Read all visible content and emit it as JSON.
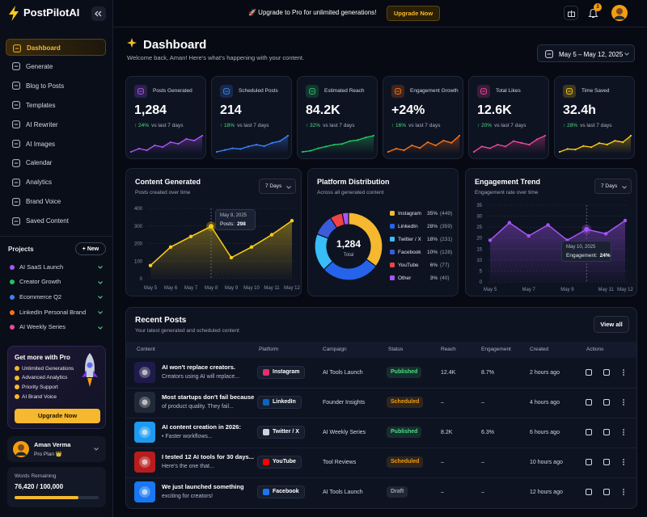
{
  "brand": "PostPilotAI",
  "nav": [
    "Dashboard",
    "Generate",
    "Blog to Posts",
    "Templates",
    "AI Rewriter",
    "AI Images",
    "Calendar",
    "Analytics",
    "Brand Voice",
    "Saved Content"
  ],
  "projects_title": "Projects",
  "new_button": "+ New",
  "projects": [
    {
      "name": "AI SaaS Launch",
      "color": "#a855f7"
    },
    {
      "name": "Creator Growth",
      "color": "#22c55e"
    },
    {
      "name": "Ecommerce Q2",
      "color": "#3b82f6"
    },
    {
      "name": "LinkedIn Personal Brand",
      "color": "#f97316"
    },
    {
      "name": "AI Weekly Series",
      "color": "#ec4899"
    }
  ],
  "promo": {
    "title": "Get more with Pro",
    "features": [
      "Unlimited Generations",
      "Advanced Analytics",
      "Priority Support",
      "AI Brand Voice"
    ],
    "button": "Upgrade Now"
  },
  "user": {
    "name": "Aman Verma",
    "plan": "Pro Plan 👑"
  },
  "words": {
    "label": "Words Remaining",
    "text": "76,420 / 100,000",
    "remaining": 76420,
    "limit": 100000
  },
  "banner": {
    "text": "🚀 Upgrade to Pro for unlimited generations!",
    "button": "Upgrade Now"
  },
  "notifications": "3",
  "header": {
    "title": "Dashboard",
    "subtitle": "Welcome back, Aman! Here's what's happening with your content.",
    "date_range": "May 5 – May 12, 2025"
  },
  "stats": [
    {
      "title": "Posts Generated",
      "value": "1,284",
      "change": "↑ 24%",
      "compare": "vs last 7 days",
      "color": "#a855f7",
      "sparkline": [
        4,
        5,
        4.5,
        6,
        5.5,
        7,
        6.5,
        8,
        7.5,
        9
      ]
    },
    {
      "title": "Scheduled Posts",
      "value": "214",
      "change": "↑ 18%",
      "compare": "vs last 7 days",
      "color": "#3b82f6",
      "sparkline": [
        3,
        3.5,
        4,
        3.8,
        4.5,
        5,
        4.6,
        5.5,
        6,
        7.5
      ]
    },
    {
      "title": "Estimated Reach",
      "value": "84.2K",
      "change": "↑ 32%",
      "compare": "vs last 7 days",
      "color": "#22c55e",
      "sparkline": [
        3,
        3.3,
        4,
        4.5,
        5,
        5.2,
        6,
        6.3,
        7,
        7.5
      ]
    },
    {
      "title": "Engagement Growth",
      "value": "+24%",
      "change": "↑ 16%",
      "compare": "vs last 7 days",
      "color": "#f97316",
      "sparkline": [
        3,
        4,
        3.5,
        5,
        4.2,
        6,
        5,
        6.5,
        5.8,
        8
      ]
    },
    {
      "title": "Total Likes",
      "value": "12.6K",
      "change": "↑ 20%",
      "compare": "vs last 7 days",
      "color": "#ec4899",
      "sparkline": [
        3,
        4.5,
        4,
        5,
        4.5,
        6,
        5.5,
        5,
        6.5,
        7.5
      ]
    },
    {
      "title": "Time Saved",
      "value": "32.4h",
      "change": "↑ 28%",
      "compare": "vs last 7 days",
      "color": "#facc15",
      "sparkline": [
        3,
        4,
        3.8,
        5,
        4.6,
        6,
        5.5,
        6.8,
        6.3,
        8.5
      ]
    }
  ],
  "content_generated": {
    "type": "line",
    "title": "Content Generated",
    "subtitle": "Posts created over time",
    "period": "7 Days",
    "categories": [
      "May 5",
      "May 6",
      "May 7",
      "May 8",
      "May 9",
      "May 10",
      "May 11",
      "May 12"
    ],
    "values": [
      75,
      180,
      240,
      298,
      120,
      180,
      250,
      330
    ],
    "ylim": [
      0,
      400
    ],
    "yticks": [
      0,
      100,
      200,
      300,
      400
    ],
    "grid": true,
    "color": "#facc15",
    "tooltip": {
      "title": "May 8, 2025",
      "label": "Posts:"
    }
  },
  "platform_distribution": {
    "type": "pie",
    "title": "Platform Distribution",
    "subtitle": "Across all generated content",
    "total": "1,284",
    "total_label": "Total",
    "categories": [
      "Instagram",
      "LinkedIn",
      "Twitter / X",
      "Facebook",
      "YouTube",
      "Other"
    ],
    "values": [
      35,
      28,
      18,
      10,
      6,
      3
    ],
    "value_labels": [
      "35%",
      "28%",
      "18%",
      "10%",
      "6%",
      "3%"
    ],
    "count_labels": [
      "(449)",
      "(359)",
      "(231)",
      "(128)",
      "(77)",
      "(40)"
    ],
    "colors": [
      "#f5b82e",
      "#2563eb",
      "#38bdf8",
      "#3b5bdb",
      "#ef4444",
      "#a855f7"
    ]
  },
  "engagement_trend": {
    "type": "line",
    "title": "Engagement Trend",
    "subtitle": "Engagement rate over time",
    "period": "7 Days",
    "categories": [
      "May 5",
      null,
      "May 7",
      null,
      "May 9",
      null,
      "May 11",
      "May 12"
    ],
    "values": [
      19,
      27,
      21,
      26,
      19,
      24,
      22,
      28
    ],
    "ylim": [
      0,
      35
    ],
    "yticks": [
      0,
      5,
      10,
      15,
      20,
      25,
      30,
      35
    ],
    "grid": true,
    "color": "#a855f7",
    "tooltip": {
      "title": "May 10, 2025",
      "label": "Engagement:",
      "value": "24%"
    }
  },
  "recent_posts": {
    "title": "Recent Posts",
    "subtitle": "Your latest generated and scheduled content",
    "view_all": "View all",
    "columns": [
      "Content",
      "Platform",
      "Campaign",
      "Status",
      "Reach",
      "Engagement",
      "Created",
      "Actions"
    ],
    "rows": [
      {
        "title": "AI won't replace creators.",
        "preview": "Creators using AI will replace...",
        "platform": "Instagram",
        "platform_color": "#e1306c",
        "thumb_color": "#1e1b4b",
        "campaign": "AI Tools Launch",
        "status": "Published",
        "status_color": "#4ade80",
        "reach": "12.4K",
        "engagement": "8.7%",
        "created": "2 hours ago"
      },
      {
        "title": "Most startups don't fail because",
        "preview": "of product quality. They fail...",
        "platform": "LinkedIn",
        "platform_color": "#0a66c2",
        "thumb_color": "#1f2937",
        "campaign": "Founder Insights",
        "status": "Scheduled",
        "status_color": "#f59e0b",
        "reach": "–",
        "engagement": "–",
        "created": "4 hours ago"
      },
      {
        "title": "AI content creation in 2026:",
        "preview": "• Faster workflows...",
        "platform": "Twitter / X",
        "platform_color": "#d1d5db",
        "thumb_color": "#1d9bf0",
        "campaign": "AI Weekly Series",
        "status": "Published",
        "status_color": "#4ade80",
        "reach": "8.2K",
        "engagement": "6.3%",
        "created": "6 hours ago"
      },
      {
        "title": "I tested 12 AI tools for 30 days...",
        "preview": "Here's the one that...",
        "platform": "YouTube",
        "platform_color": "#ff0000",
        "thumb_color": "#b91c1c",
        "campaign": "Tool Reviews",
        "status": "Scheduled",
        "status_color": "#f59e0b",
        "reach": "–",
        "engagement": "–",
        "created": "10 hours ago"
      },
      {
        "title": "We just launched something",
        "preview": "exciting for creators!",
        "platform": "Facebook",
        "platform_color": "#1877f2",
        "thumb_color": "#1877f2",
        "campaign": "AI Tools Launch",
        "status": "Draft",
        "status_color": "#9ca3af",
        "reach": "–",
        "engagement": "–",
        "created": "12 hours ago"
      }
    ]
  }
}
